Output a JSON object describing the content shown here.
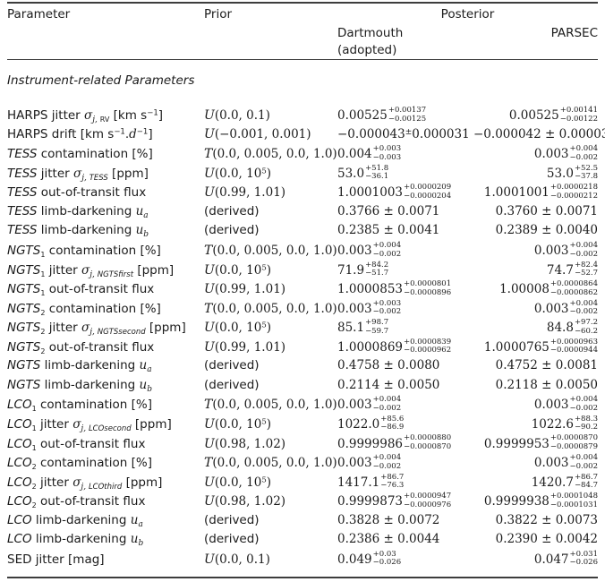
{
  "header": {
    "parameter": "Parameter",
    "prior": "Prior",
    "posterior": "Posterior",
    "dartmouth": "Dartmouth",
    "adopted": "(adopted)",
    "parsec": "PARSEC"
  },
  "section_title": "Instrument-related Parameters",
  "rows": [
    {
      "param": [
        {
          "t": "n",
          "x": "HARPS jitter "
        },
        {
          "t": "mi",
          "x": "σ"
        },
        {
          "t": "sub",
          "x": "j, "
        },
        {
          "t": "subr",
          "x": "RV"
        },
        {
          "t": "n",
          "x": " [km s"
        },
        {
          "t": "sup",
          "x": "−1"
        },
        {
          "t": "n",
          "x": "]"
        }
      ],
      "prior": [
        {
          "t": "cal",
          "x": "U"
        },
        {
          "t": "m",
          "x": "(0.0, 0.1)"
        }
      ],
      "dartmouth": {
        "t": "asym",
        "v": "0.00525",
        "u": "+0.00137",
        "d": "−0.00125"
      },
      "parsec": {
        "t": "asym",
        "v": "0.00525",
        "u": "+0.00141",
        "d": "−0.00122"
      }
    },
    {
      "param": [
        {
          "t": "n",
          "x": "HARPS drift [km s"
        },
        {
          "t": "sup",
          "x": "−1"
        },
        {
          "t": "n",
          "x": "."
        },
        {
          "t": "mi",
          "x": "d"
        },
        {
          "t": "sup",
          "x": "−1"
        },
        {
          "t": "n",
          "x": "]"
        }
      ],
      "prior": [
        {
          "t": "cal",
          "x": "U"
        },
        {
          "t": "m",
          "x": "(−0.001, 0.001)"
        }
      ],
      "dartmouth": {
        "t": "suppm",
        "v": "−0.000043",
        "e": "0.000031"
      },
      "parsec": {
        "t": "pm",
        "v": "−0.000042",
        "e": "0.000030"
      }
    },
    {
      "param": [
        {
          "t": "i",
          "x": "TESS"
        },
        {
          "t": "n",
          "x": " contamination [%]"
        }
      ],
      "prior": [
        {
          "t": "cal",
          "x": "T"
        },
        {
          "t": "m",
          "x": "(0.0, 0.005, 0.0, 1.0)"
        }
      ],
      "dartmouth": {
        "t": "asym",
        "v": "0.004",
        "u": "+0.003",
        "d": "−0.003"
      },
      "parsec": {
        "t": "asym",
        "v": "0.003",
        "u": "+0.004",
        "d": "−0.002"
      }
    },
    {
      "param": [
        {
          "t": "i",
          "x": "TESS"
        },
        {
          "t": "n",
          "x": " jitter "
        },
        {
          "t": "mi",
          "x": "σ"
        },
        {
          "t": "sub",
          "x": "j, "
        },
        {
          "t": "subi",
          "x": "TESS"
        },
        {
          "t": "n",
          "x": " [ppm]"
        }
      ],
      "prior": [
        {
          "t": "cal",
          "x": "U"
        },
        {
          "t": "m",
          "x": "(0.0, 10"
        },
        {
          "t": "msup",
          "x": "5"
        },
        {
          "t": "m",
          "x": ")"
        }
      ],
      "dartmouth": {
        "t": "asym",
        "v": "53.0",
        "u": "+51.8",
        "d": "−36.1"
      },
      "parsec": {
        "t": "asym",
        "v": "53.0",
        "u": "+52.5",
        "d": "−37.8"
      }
    },
    {
      "param": [
        {
          "t": "i",
          "x": "TESS"
        },
        {
          "t": "n",
          "x": " out-of-transit flux"
        }
      ],
      "prior": [
        {
          "t": "cal",
          "x": "U"
        },
        {
          "t": "m",
          "x": "(0.99, 1.01)"
        }
      ],
      "dartmouth": {
        "t": "asym",
        "v": "1.0001003",
        "u": "+0.0000209",
        "d": "−0.0000204"
      },
      "parsec": {
        "t": "asym",
        "v": "1.0001001",
        "u": "+0.0000218",
        "d": "−0.0000212"
      }
    },
    {
      "param": [
        {
          "t": "i",
          "x": "TESS"
        },
        {
          "t": "n",
          "x": " limb-darkening "
        },
        {
          "t": "mi",
          "x": "u"
        },
        {
          "t": "sub",
          "x": "a"
        }
      ],
      "prior": [
        {
          "t": "n",
          "x": "(derived)"
        }
      ],
      "dartmouth": {
        "t": "pm",
        "v": "0.3766",
        "e": "0.0071"
      },
      "parsec": {
        "t": "pm",
        "v": "0.3760",
        "e": "0.0071"
      }
    },
    {
      "param": [
        {
          "t": "i",
          "x": "TESS"
        },
        {
          "t": "n",
          "x": " limb-darkening "
        },
        {
          "t": "mi",
          "x": "u"
        },
        {
          "t": "sub",
          "x": "b"
        }
      ],
      "prior": [
        {
          "t": "n",
          "x": "(derived)"
        }
      ],
      "dartmouth": {
        "t": "pm",
        "v": "0.2385",
        "e": "0.0041"
      },
      "parsec": {
        "t": "pm",
        "v": "0.2389",
        "e": "0.0040"
      }
    },
    {
      "param": [
        {
          "t": "i",
          "x": "NGTS"
        },
        {
          "t": "subr",
          "x": "1"
        },
        {
          "t": "n",
          "x": " contamination [%]"
        }
      ],
      "prior": [
        {
          "t": "cal",
          "x": "T"
        },
        {
          "t": "m",
          "x": "(0.0, 0.005, 0.0, 1.0)"
        }
      ],
      "dartmouth": {
        "t": "asym",
        "v": "0.003",
        "u": "+0.004",
        "d": "−0.002"
      },
      "parsec": {
        "t": "asym",
        "v": "0.003",
        "u": "+0.004",
        "d": "−0.002"
      }
    },
    {
      "param": [
        {
          "t": "i",
          "x": "NGTS"
        },
        {
          "t": "subr",
          "x": "1"
        },
        {
          "t": "n",
          "x": " jitter "
        },
        {
          "t": "mi",
          "x": "σ"
        },
        {
          "t": "sub",
          "x": "j, "
        },
        {
          "t": "subi",
          "x": "NGTSfirst"
        },
        {
          "t": "n",
          "x": " [ppm]"
        }
      ],
      "prior": [
        {
          "t": "cal",
          "x": "U"
        },
        {
          "t": "m",
          "x": "(0.0, 10"
        },
        {
          "t": "msup",
          "x": "5"
        },
        {
          "t": "m",
          "x": ")"
        }
      ],
      "dartmouth": {
        "t": "asym",
        "v": "71.9",
        "u": "+84.2",
        "d": "−51.7"
      },
      "parsec": {
        "t": "asym",
        "v": "74.7",
        "u": "+82.4",
        "d": "−52.7"
      }
    },
    {
      "param": [
        {
          "t": "i",
          "x": "NGTS"
        },
        {
          "t": "subr",
          "x": "1"
        },
        {
          "t": "n",
          "x": " out-of-transit flux"
        }
      ],
      "prior": [
        {
          "t": "cal",
          "x": "U"
        },
        {
          "t": "m",
          "x": "(0.99, 1.01)"
        }
      ],
      "dartmouth": {
        "t": "asym",
        "v": "1.0000853",
        "u": "+0.0000801",
        "d": "−0.0000896"
      },
      "parsec": {
        "t": "asym",
        "v": "1.00008",
        "u": "+0.0000864",
        "d": "−0.0000862"
      }
    },
    {
      "param": [
        {
          "t": "i",
          "x": "NGTS"
        },
        {
          "t": "subr",
          "x": "2"
        },
        {
          "t": "n",
          "x": " contamination [%]"
        }
      ],
      "prior": [
        {
          "t": "cal",
          "x": "T"
        },
        {
          "t": "m",
          "x": "(0.0, 0.005, 0.0, 1.0)"
        }
      ],
      "dartmouth": {
        "t": "asym",
        "v": "0.003",
        "u": "+0.003",
        "d": "−0.002"
      },
      "parsec": {
        "t": "asym",
        "v": "0.003",
        "u": "+0.004",
        "d": "−0.002"
      }
    },
    {
      "param": [
        {
          "t": "i",
          "x": "NGTS"
        },
        {
          "t": "subr",
          "x": "2"
        },
        {
          "t": "n",
          "x": " jitter "
        },
        {
          "t": "mi",
          "x": "σ"
        },
        {
          "t": "sub",
          "x": "j, "
        },
        {
          "t": "subi",
          "x": "NGTSsecond"
        },
        {
          "t": "n",
          "x": " [ppm]"
        }
      ],
      "prior": [
        {
          "t": "cal",
          "x": "U"
        },
        {
          "t": "m",
          "x": "(0.0, 10"
        },
        {
          "t": "msup",
          "x": "5"
        },
        {
          "t": "m",
          "x": ")"
        }
      ],
      "dartmouth": {
        "t": "asym",
        "v": "85.1",
        "u": "+98.7",
        "d": "−59.7"
      },
      "parsec": {
        "t": "asym",
        "v": "84.8",
        "u": "+97.2",
        "d": "−60.2"
      }
    },
    {
      "param": [
        {
          "t": "i",
          "x": "NGTS"
        },
        {
          "t": "subr",
          "x": "2"
        },
        {
          "t": "n",
          "x": " out-of-transit flux"
        }
      ],
      "prior": [
        {
          "t": "cal",
          "x": "U"
        },
        {
          "t": "m",
          "x": "(0.99, 1.01)"
        }
      ],
      "dartmouth": {
        "t": "asym",
        "v": "1.0000869",
        "u": "+0.0000839",
        "d": "−0.0000962"
      },
      "parsec": {
        "t": "asym",
        "v": "1.0000765",
        "u": "+0.0000963",
        "d": "−0.0000944"
      }
    },
    {
      "param": [
        {
          "t": "i",
          "x": "NGTS"
        },
        {
          "t": "n",
          "x": " limb-darkening "
        },
        {
          "t": "mi",
          "x": "u"
        },
        {
          "t": "sub",
          "x": "a"
        }
      ],
      "prior": [
        {
          "t": "n",
          "x": "(derived)"
        }
      ],
      "dartmouth": {
        "t": "pm",
        "v": "0.4758",
        "e": "0.0080"
      },
      "parsec": {
        "t": "pm",
        "v": "0.4752",
        "e": "0.0081"
      }
    },
    {
      "param": [
        {
          "t": "i",
          "x": "NGTS"
        },
        {
          "t": "n",
          "x": " limb-darkening "
        },
        {
          "t": "mi",
          "x": "u"
        },
        {
          "t": "sub",
          "x": "b"
        }
      ],
      "prior": [
        {
          "t": "n",
          "x": "(derived)"
        }
      ],
      "dartmouth": {
        "t": "pm",
        "v": "0.2114",
        "e": "0.0050"
      },
      "parsec": {
        "t": "pm",
        "v": "0.2118",
        "e": "0.0050"
      }
    },
    {
      "param": [
        {
          "t": "i",
          "x": "LCO"
        },
        {
          "t": "subr",
          "x": "1"
        },
        {
          "t": "n",
          "x": " contamination [%]"
        }
      ],
      "prior": [
        {
          "t": "cal",
          "x": "T"
        },
        {
          "t": "m",
          "x": "(0.0, 0.005, 0.0, 1.0)"
        }
      ],
      "dartmouth": {
        "t": "asym",
        "v": "0.003",
        "u": "+0.004",
        "d": "−0.002"
      },
      "parsec": {
        "t": "asym",
        "v": "0.003",
        "u": "+0.004",
        "d": "−0.002"
      }
    },
    {
      "param": [
        {
          "t": "i",
          "x": "LCO"
        },
        {
          "t": "subr",
          "x": "1"
        },
        {
          "t": "n",
          "x": " jitter "
        },
        {
          "t": "mi",
          "x": "σ"
        },
        {
          "t": "sub",
          "x": "j, "
        },
        {
          "t": "subi",
          "x": "LCOsecond"
        },
        {
          "t": "n",
          "x": " [ppm]"
        }
      ],
      "prior": [
        {
          "t": "cal",
          "x": "U"
        },
        {
          "t": "m",
          "x": "(0.0, 10"
        },
        {
          "t": "msup",
          "x": "5"
        },
        {
          "t": "m",
          "x": ")"
        }
      ],
      "dartmouth": {
        "t": "asym",
        "v": "1022.0",
        "u": "+85.6",
        "d": "−86.9"
      },
      "parsec": {
        "t": "asym",
        "v": "1022.6",
        "u": "+88.3",
        "d": "−90.2"
      }
    },
    {
      "param": [
        {
          "t": "i",
          "x": "LCO"
        },
        {
          "t": "subr",
          "x": "1"
        },
        {
          "t": "n",
          "x": " out-of-transit flux"
        }
      ],
      "prior": [
        {
          "t": "cal",
          "x": "U"
        },
        {
          "t": "m",
          "x": "(0.98, 1.02)"
        }
      ],
      "dartmouth": {
        "t": "asym",
        "v": "0.9999986",
        "u": "+0.0000880",
        "d": "−0.0000870"
      },
      "parsec": {
        "t": "asym",
        "v": "0.9999953",
        "u": "+0.0000870",
        "d": "−0.0000879"
      }
    },
    {
      "param": [
        {
          "t": "i",
          "x": "LCO"
        },
        {
          "t": "subr",
          "x": "2"
        },
        {
          "t": "n",
          "x": " contamination [%]"
        }
      ],
      "prior": [
        {
          "t": "cal",
          "x": "T"
        },
        {
          "t": "m",
          "x": "(0.0, 0.005, 0.0, 1.0)"
        }
      ],
      "dartmouth": {
        "t": "asym",
        "v": "0.003",
        "u": "+0.004",
        "d": "−0.002"
      },
      "parsec": {
        "t": "asym",
        "v": "0.003",
        "u": "+0.004",
        "d": "−0.002"
      }
    },
    {
      "param": [
        {
          "t": "i",
          "x": "LCO"
        },
        {
          "t": "subr",
          "x": "2"
        },
        {
          "t": "n",
          "x": " jitter "
        },
        {
          "t": "mi",
          "x": "σ"
        },
        {
          "t": "sub",
          "x": "j, "
        },
        {
          "t": "subi",
          "x": "LCOthird"
        },
        {
          "t": "n",
          "x": " [ppm]"
        }
      ],
      "prior": [
        {
          "t": "cal",
          "x": "U"
        },
        {
          "t": "m",
          "x": "(0.0, 10"
        },
        {
          "t": "msup",
          "x": "5"
        },
        {
          "t": "m",
          "x": ")"
        }
      ],
      "dartmouth": {
        "t": "asym",
        "v": "1417.1",
        "u": "+86.7",
        "d": "−76.3"
      },
      "parsec": {
        "t": "asym",
        "v": "1420.7",
        "u": "+86.7",
        "d": "−84.7"
      }
    },
    {
      "param": [
        {
          "t": "i",
          "x": "LCO"
        },
        {
          "t": "subr",
          "x": "2"
        },
        {
          "t": "n",
          "x": " out-of-transit flux"
        }
      ],
      "prior": [
        {
          "t": "cal",
          "x": "U"
        },
        {
          "t": "m",
          "x": "(0.98, 1.02)"
        }
      ],
      "dartmouth": {
        "t": "asym",
        "v": "0.9999873",
        "u": "+0.0000947",
        "d": "−0.0000976"
      },
      "parsec": {
        "t": "asym",
        "v": "0.9999938",
        "u": "+0.0001048",
        "d": "−0.0001031"
      }
    },
    {
      "param": [
        {
          "t": "i",
          "x": "LCO"
        },
        {
          "t": "n",
          "x": " limb-darkening "
        },
        {
          "t": "mi",
          "x": "u"
        },
        {
          "t": "sub",
          "x": "a"
        }
      ],
      "prior": [
        {
          "t": "n",
          "x": "(derived)"
        }
      ],
      "dartmouth": {
        "t": "pm",
        "v": "0.3828",
        "e": "0.0072"
      },
      "parsec": {
        "t": "pm",
        "v": "0.3822",
        "e": "0.0073"
      }
    },
    {
      "param": [
        {
          "t": "i",
          "x": "LCO"
        },
        {
          "t": "n",
          "x": " limb-darkening "
        },
        {
          "t": "mi",
          "x": "u"
        },
        {
          "t": "sub",
          "x": "b"
        }
      ],
      "prior": [
        {
          "t": "n",
          "x": "(derived)"
        }
      ],
      "dartmouth": {
        "t": "pm",
        "v": "0.2386",
        "e": "0.0044"
      },
      "parsec": {
        "t": "pm",
        "v": "0.2390",
        "e": "0.0042"
      }
    },
    {
      "param": [
        {
          "t": "n",
          "x": "SED jitter [mag]"
        }
      ],
      "prior": [
        {
          "t": "cal",
          "x": "U"
        },
        {
          "t": "m",
          "x": "(0.0, 0.1)"
        }
      ],
      "dartmouth": {
        "t": "asym",
        "v": "0.049",
        "u": "+0.03",
        "d": "−0.026"
      },
      "parsec": {
        "t": "asym",
        "v": "0.047",
        "u": "+0.031",
        "d": "−0.026"
      }
    }
  ]
}
